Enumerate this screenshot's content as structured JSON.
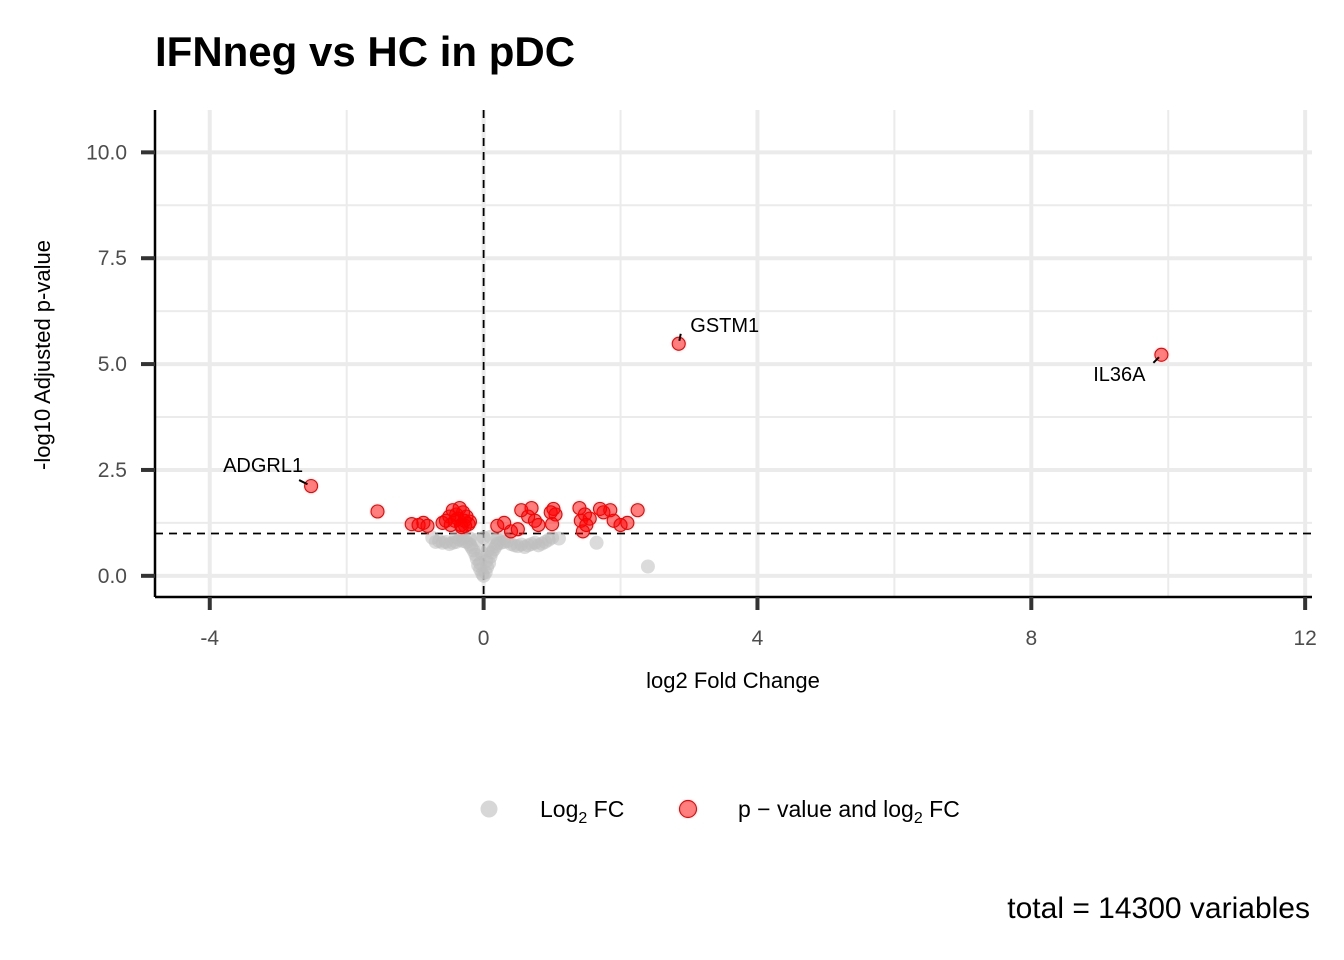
{
  "chart_data": {
    "type": "scatter",
    "title": "IFNneg vs HC in pDC",
    "xlabel": "log2 Fold Change",
    "ylabel": "-log10 Adjusted p-value",
    "xlim": [
      -4.8,
      12.1
    ],
    "ylim": [
      -0.5,
      11.0
    ],
    "x_ticks": [
      -4,
      0,
      4,
      8,
      12
    ],
    "y_ticks": [
      0.0,
      2.5,
      5.0,
      7.5,
      10.0
    ],
    "x_tick_labels": [
      "-4",
      "0",
      "4",
      "8",
      "12"
    ],
    "y_tick_labels": [
      "0.0",
      "2.5",
      "5.0",
      "7.5",
      "10.0"
    ],
    "grid": true,
    "fc_cutoff": 0,
    "p_cutoff": 1.0,
    "legend_position": "bottom",
    "series": [
      {
        "name": "Log2 FC",
        "color": "#bdbdbd",
        "points": [
          [
            0.0,
            0.0
          ],
          [
            -0.02,
            0.05
          ],
          [
            0.03,
            0.08
          ],
          [
            -0.05,
            0.15
          ],
          [
            0.05,
            0.2
          ],
          [
            -0.08,
            0.25
          ],
          [
            0.08,
            0.3
          ],
          [
            -0.1,
            0.4
          ],
          [
            0.1,
            0.45
          ],
          [
            -0.12,
            0.5
          ],
          [
            0.12,
            0.55
          ],
          [
            -0.15,
            0.6
          ],
          [
            0.15,
            0.62
          ],
          [
            -0.18,
            0.68
          ],
          [
            0.18,
            0.7
          ],
          [
            -0.2,
            0.74
          ],
          [
            0.2,
            0.76
          ],
          [
            -0.25,
            0.8
          ],
          [
            0.25,
            0.78
          ],
          [
            -0.3,
            0.82
          ],
          [
            0.3,
            0.8
          ],
          [
            -0.35,
            0.85
          ],
          [
            0.35,
            0.82
          ],
          [
            -0.4,
            0.8
          ],
          [
            0.4,
            0.75
          ],
          [
            -0.45,
            0.78
          ],
          [
            0.45,
            0.72
          ],
          [
            -0.5,
            0.75
          ],
          [
            0.5,
            0.7
          ],
          [
            -0.55,
            0.8
          ],
          [
            0.55,
            0.74
          ],
          [
            -0.6,
            0.78
          ],
          [
            0.6,
            0.68
          ],
          [
            -0.65,
            0.82
          ],
          [
            0.65,
            0.72
          ],
          [
            -0.7,
            0.8
          ],
          [
            0.7,
            0.75
          ],
          [
            -0.75,
            0.9
          ],
          [
            0.75,
            0.78
          ],
          [
            0.8,
            0.72
          ],
          [
            0.85,
            0.76
          ],
          [
            0.9,
            0.8
          ],
          [
            0.95,
            0.85
          ],
          [
            1.0,
            0.9
          ],
          [
            1.1,
            0.88
          ],
          [
            -0.3,
            0.9
          ],
          [
            -0.2,
            0.88
          ],
          [
            -0.1,
            0.85
          ],
          [
            0.0,
            0.9
          ],
          [
            0.1,
            0.92
          ],
          [
            0.2,
            0.86
          ],
          [
            -0.4,
            0.92
          ],
          [
            0.3,
            0.9
          ],
          [
            -0.05,
            0.3
          ],
          [
            0.04,
            0.35
          ],
          [
            -0.03,
            0.55
          ],
          [
            0.06,
            0.6
          ],
          [
            1.65,
            0.78
          ],
          [
            2.4,
            0.22
          ]
        ]
      },
      {
        "name": "p - value and log2 FC",
        "color": "#ff0000",
        "points": [
          [
            -2.52,
            2.12
          ],
          [
            -1.55,
            1.52
          ],
          [
            -1.05,
            1.22
          ],
          [
            -0.95,
            1.2
          ],
          [
            -0.88,
            1.25
          ],
          [
            -0.82,
            1.18
          ],
          [
            -0.6,
            1.25
          ],
          [
            -0.55,
            1.3
          ],
          [
            -0.5,
            1.4
          ],
          [
            -0.45,
            1.55
          ],
          [
            -0.4,
            1.45
          ],
          [
            -0.38,
            1.35
          ],
          [
            -0.35,
            1.6
          ],
          [
            -0.33,
            1.2
          ],
          [
            -0.3,
            1.5
          ],
          [
            -0.28,
            1.3
          ],
          [
            -0.25,
            1.4
          ],
          [
            -0.22,
            1.22
          ],
          [
            -0.2,
            1.28
          ],
          [
            -0.42,
            1.3
          ],
          [
            -0.48,
            1.2
          ],
          [
            -0.32,
            1.15
          ],
          [
            -0.27,
            1.18
          ],
          [
            0.2,
            1.18
          ],
          [
            0.3,
            1.25
          ],
          [
            0.4,
            1.05
          ],
          [
            0.5,
            1.1
          ],
          [
            0.55,
            1.55
          ],
          [
            0.65,
            1.4
          ],
          [
            0.7,
            1.6
          ],
          [
            0.75,
            1.3
          ],
          [
            0.8,
            1.2
          ],
          [
            0.98,
            1.5
          ],
          [
            1.0,
            1.22
          ],
          [
            1.02,
            1.58
          ],
          [
            1.05,
            1.45
          ],
          [
            1.4,
            1.6
          ],
          [
            1.42,
            1.3
          ],
          [
            1.45,
            1.05
          ],
          [
            1.48,
            1.45
          ],
          [
            1.5,
            1.2
          ],
          [
            1.55,
            1.35
          ],
          [
            1.7,
            1.58
          ],
          [
            1.75,
            1.5
          ],
          [
            1.85,
            1.55
          ],
          [
            1.9,
            1.3
          ],
          [
            2.0,
            1.2
          ],
          [
            2.1,
            1.25
          ],
          [
            2.25,
            1.55
          ],
          [
            2.85,
            5.48
          ],
          [
            9.9,
            5.22
          ]
        ]
      }
    ],
    "labels": [
      {
        "gene": "ADGRL1",
        "x": -2.52,
        "y": 2.12
      },
      {
        "gene": "GSTM1",
        "x": 2.85,
        "y": 5.48
      },
      {
        "gene": "IL36A",
        "x": 9.9,
        "y": 5.22
      }
    ],
    "legend": {
      "items": [
        {
          "name": "Log2 FC",
          "color": "#bdbdbd"
        },
        {
          "name": "p - value and log2 FC",
          "color": "#ff0000"
        }
      ]
    },
    "caption": "total = 14300 variables"
  }
}
